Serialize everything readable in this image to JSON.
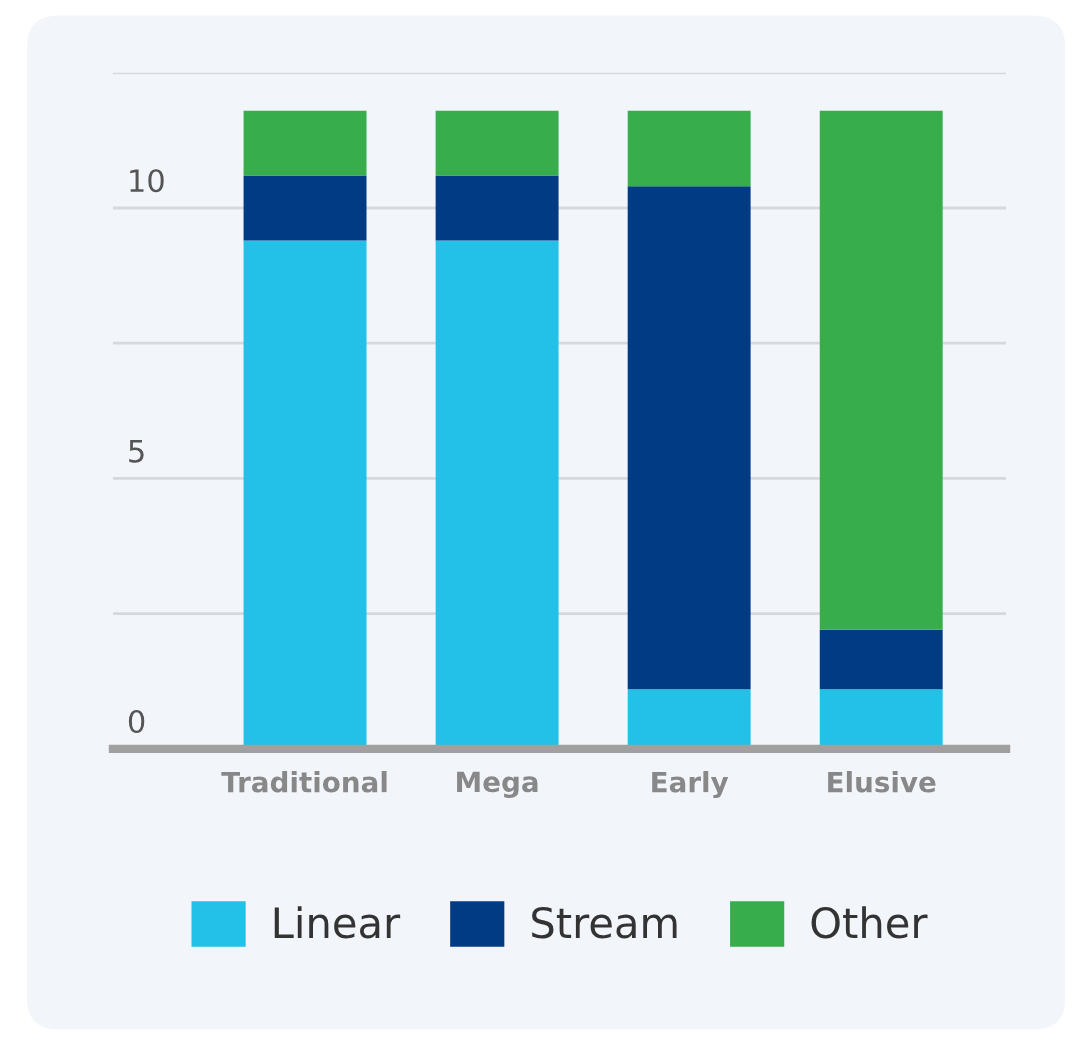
{
  "chart_data": {
    "type": "bar",
    "stacked": true,
    "categories": [
      "Traditional",
      "Mega",
      "Early",
      "Elusive"
    ],
    "series": [
      {
        "name": "Linear",
        "color": "#23c1e8",
        "values": [
          9.4,
          9.4,
          1.1,
          1.1
        ]
      },
      {
        "name": "Stream",
        "color": "#003b84",
        "values": [
          1.2,
          1.2,
          9.3,
          1.1
        ]
      },
      {
        "name": "Other",
        "color": "#37ad4b",
        "values": [
          1.2,
          1.2,
          1.4,
          9.6
        ]
      }
    ],
    "ylim": [
      0,
      12.5
    ],
    "yticks": [
      0,
      {
        "value": 2.5,
        "label": null
      },
      5,
      {
        "value": 7.5,
        "label": null
      },
      10,
      {
        "value": 12.5,
        "label": null
      }
    ],
    "grid": "y",
    "legend": "bottom"
  }
}
